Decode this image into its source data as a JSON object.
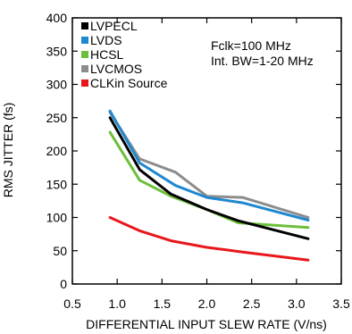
{
  "chart_data": {
    "type": "line",
    "title": "",
    "xlabel": "DIFFERENTIAL INPUT SLEW RATE (V/ns)",
    "ylabel": "RMS JITTER (fs)",
    "xlim": [
      0.5,
      3.5
    ],
    "ylim": [
      0,
      400
    ],
    "xticks": [
      "0.5",
      "1.0",
      "1.5",
      "2.0",
      "2.5",
      "3.0",
      "3.5"
    ],
    "yticks": [
      "0",
      "50",
      "100",
      "150",
      "200",
      "250",
      "300",
      "350",
      "400"
    ],
    "grid": false,
    "legend_position": "top-left",
    "annotations": [
      "Fclk=100 MHz",
      "Int. BW=1-20 MHz"
    ],
    "series": [
      {
        "name": "LVPECL",
        "color": "#000000",
        "x": [
          0.92,
          1.25,
          1.6,
          2.0,
          2.35,
          3.13
        ],
        "y": [
          250,
          172,
          135,
          112,
          95,
          68
        ]
      },
      {
        "name": "LVDS",
        "color": "#1e88d0",
        "x": [
          0.92,
          1.25,
          1.65,
          2.0,
          2.4,
          3.13
        ],
        "y": [
          260,
          182,
          148,
          130,
          122,
          96
        ]
      },
      {
        "name": "HCSL",
        "color": "#6cbf3a",
        "x": [
          0.92,
          1.25,
          1.6,
          2.0,
          2.35,
          3.13
        ],
        "y": [
          228,
          156,
          132,
          112,
          92,
          85
        ]
      },
      {
        "name": "LVCMOS",
        "color": "#8c8c8c",
        "x": [
          0.92,
          1.25,
          1.65,
          2.0,
          2.4,
          3.13
        ],
        "y": [
          258,
          188,
          168,
          132,
          130,
          100
        ]
      },
      {
        "name": "CLKin Source",
        "color": "#e8171c",
        "x": [
          0.92,
          1.25,
          1.6,
          2.0,
          2.4,
          3.13
        ],
        "y": [
          100,
          80,
          65,
          55,
          48,
          36
        ]
      }
    ]
  }
}
